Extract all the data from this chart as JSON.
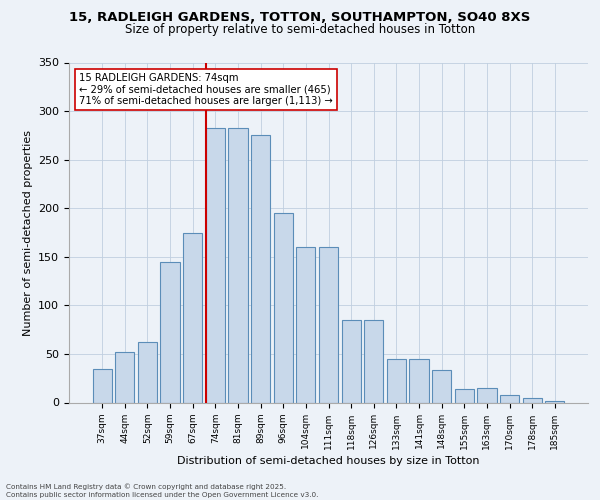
{
  "title_line1": "15, RADLEIGH GARDENS, TOTTON, SOUTHAMPTON, SO40 8XS",
  "title_line2": "Size of property relative to semi-detached houses in Totton",
  "xlabel": "Distribution of semi-detached houses by size in Totton",
  "ylabel": "Number of semi-detached properties",
  "bins": [
    "37sqm",
    "44sqm",
    "52sqm",
    "59sqm",
    "67sqm",
    "74sqm",
    "81sqm",
    "89sqm",
    "96sqm",
    "104sqm",
    "111sqm",
    "118sqm",
    "126sqm",
    "133sqm",
    "141sqm",
    "148sqm",
    "155sqm",
    "163sqm",
    "170sqm",
    "178sqm",
    "185sqm"
  ],
  "bar_values": [
    35,
    52,
    62,
    145,
    175,
    283,
    283,
    275,
    195,
    160,
    160,
    85,
    85,
    45,
    45,
    33,
    14,
    15,
    8,
    5,
    2
  ],
  "bar_color": "#c8d8ea",
  "bar_edge_color": "#5b8db8",
  "vline_color": "#cc0000",
  "vline_index": 5,
  "annotation_text": "15 RADLEIGH GARDENS: 74sqm\n← 29% of semi-detached houses are smaller (465)\n71% of semi-detached houses are larger (1,113) →",
  "ylim": [
    0,
    350
  ],
  "yticks": [
    0,
    50,
    100,
    150,
    200,
    250,
    300,
    350
  ],
  "footer_line1": "Contains HM Land Registry data © Crown copyright and database right 2025.",
  "footer_line2": "Contains public sector information licensed under the Open Government Licence v3.0.",
  "fig_bg_color": "#edf2f8",
  "plot_bg_color": "#edf2f8",
  "grid_color": "#c0cfe0"
}
